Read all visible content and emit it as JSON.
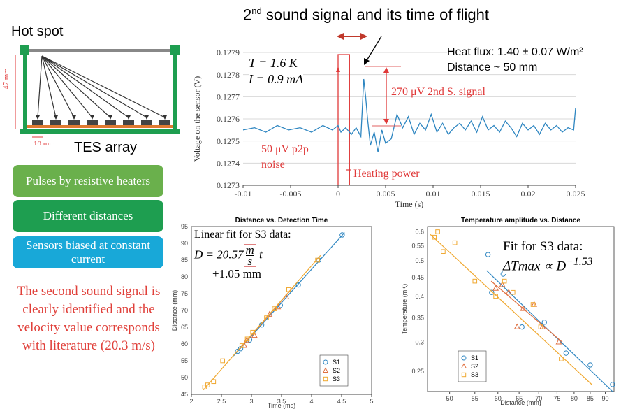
{
  "slide": {
    "title_prefix": "2",
    "title_sup": "nd",
    "title_suffix": " sound signal and its time of flight",
    "hot_spot_label": "Hot spot",
    "tes_array_label": "TES array",
    "dim_height": "47 mm",
    "dim_width": "10 mm",
    "boxes": [
      {
        "label": "Pulses by resistive heaters",
        "color": "#6ab04c"
      },
      {
        "label": "Different distances",
        "color": "#1e9e50"
      },
      {
        "label": "Sensors biased at constant current",
        "color": "#18a8d8"
      }
    ],
    "conclusion": "The second sound signal is clearly identified and the velocity value corresponds with literature (20.3 m/s)"
  },
  "signal_annotations": {
    "temperature": "T = 1.6 K",
    "current": "I = 0.9 mA",
    "heat_flux": "Heat flux: 1.40 ± 0.07 W/m²",
    "distance": "Distance ~ 50 mm",
    "signal_label": "270 μV 2nd S. signal",
    "noise_label_1": "50 μV p2p",
    "noise_label_2": "noise",
    "heating_label": "Heating power"
  },
  "fit1": {
    "line1": "Linear fit for S3 data:",
    "prefix": "D = 20.57",
    "num": "m",
    "den": "s",
    "var": "t",
    "line3": "+1.05 mm"
  },
  "fit2": {
    "line1": "Fit for S3 data:",
    "eq": "ΔTmax ∝ D",
    "exp": "−1.53"
  },
  "chart_data": [
    {
      "type": "line",
      "title": "",
      "xlabel": "Time (s)",
      "ylabel": "Voltage on the sensor (V)",
      "xlim": [
        -0.01,
        0.025
      ],
      "ylim": [
        0.1273,
        0.1279
      ],
      "xticks": [
        -0.01,
        -0.005,
        0,
        0.005,
        0.01,
        0.015,
        0.02,
        0.025
      ],
      "xtick_labels": [
        "-0.01",
        "-0.005",
        "0",
        "0.005",
        "0.01",
        "0.015",
        "0.02",
        "0.025"
      ],
      "yticks": [
        0.1273,
        0.1274,
        0.1275,
        0.1276,
        0.1277,
        0.1278,
        0.1279
      ],
      "ytick_labels": [
        "0.1273",
        "0.1274",
        "0.1275",
        "0.1276",
        "0.1277",
        "0.1278",
        "0.1279"
      ],
      "grid": true,
      "series": [
        {
          "color": "#2e86c1",
          "x": [
            -0.01,
            -0.0088,
            -0.0076,
            -0.0064,
            -0.0052,
            -0.004,
            -0.0028,
            -0.0016,
            -0.0006,
            0,
            0.0003,
            0.0008,
            0.0014,
            0.0019,
            0.0024,
            0.0027,
            0.0029,
            0.0031,
            0.0034,
            0.0038,
            0.0042,
            0.0046,
            0.005,
            0.0056,
            0.0062,
            0.0068,
            0.0074,
            0.008,
            0.0086,
            0.0092,
            0.0098,
            0.0104,
            0.011,
            0.0116,
            0.0122,
            0.0128,
            0.0134,
            0.014,
            0.0146,
            0.0152,
            0.0158,
            0.0164,
            0.017,
            0.0176,
            0.0182,
            0.0188,
            0.0194,
            0.02,
            0.0206,
            0.0212,
            0.0218,
            0.0224,
            0.023,
            0.0236,
            0.0242,
            0.0248,
            0.025
          ],
          "y": [
            0.12755,
            0.12756,
            0.12754,
            0.12757,
            0.12755,
            0.12756,
            0.12754,
            0.12757,
            0.12755,
            0.12757,
            0.12754,
            0.12756,
            0.12753,
            0.12756,
            0.12752,
            0.12778,
            0.1277,
            0.1276,
            0.12748,
            0.12754,
            0.12745,
            0.12755,
            0.12749,
            0.12751,
            0.12762,
            0.12756,
            0.12761,
            0.12753,
            0.12758,
            0.12755,
            0.12762,
            0.12754,
            0.12758,
            0.12753,
            0.12756,
            0.12758,
            0.12755,
            0.12759,
            0.12754,
            0.12761,
            0.12755,
            0.12757,
            0.12754,
            0.12759,
            0.12756,
            0.12752,
            0.12758,
            0.12755,
            0.12757,
            0.12753,
            0.12758,
            0.12755,
            0.12757,
            0.12754,
            0.12756,
            0.12755,
            0.12765
          ]
        }
      ],
      "heating_pulse": {
        "x_start": 0,
        "x_end": 0.0012,
        "color": "#e03a3a"
      }
    },
    {
      "type": "scatter",
      "title": "Distance vs. Detection Time",
      "xlabel": "Time (ms)",
      "ylabel": "Distance (mm)",
      "xlim": [
        2,
        5
      ],
      "ylim": [
        45,
        95
      ],
      "xticks": [
        2,
        2.5,
        3,
        3.5,
        4,
        4.5,
        5
      ],
      "xtick_labels": [
        "2",
        "2.5",
        "3",
        "3.5",
        "4",
        "4.5",
        "5"
      ],
      "yticks": [
        45,
        50,
        55,
        60,
        65,
        70,
        75,
        80,
        85,
        90,
        95
      ],
      "ytick_labels": [
        "45",
        "50",
        "55",
        "60",
        "65",
        "70",
        "75",
        "80",
        "85",
        "90",
        "95"
      ],
      "legend_position": "bottom-right",
      "series": [
        {
          "name": "S1",
          "marker": "circle",
          "color": "#2e86c1",
          "x": [
            2.77,
            2.82,
            2.97,
            3.17,
            3.48,
            3.78,
            4.12,
            4.51
          ],
          "y": [
            57.8,
            58.6,
            61.2,
            65.7,
            71.5,
            77.6,
            85.0,
            92.5
          ],
          "fit": [
            [
              2.7,
              56.4
            ],
            [
              4.55,
              93.2
            ]
          ]
        },
        {
          "name": "S2",
          "marker": "triangle",
          "color": "#e07040",
          "x": [
            2.88,
            2.92,
            3.05,
            3.3,
            3.44,
            3.58
          ],
          "y": [
            59.5,
            61.0,
            62.5,
            68.8,
            71.0,
            74.0
          ],
          "fit": [
            [
              2.8,
              58.5
            ],
            [
              3.7,
              77.0
            ]
          ]
        },
        {
          "name": "S3",
          "marker": "square",
          "color": "#f0a830",
          "x": [
            2.22,
            2.27,
            2.37,
            2.52,
            2.84,
            2.93,
            3.02,
            3.25,
            3.38,
            3.62,
            4.1
          ],
          "y": [
            47.2,
            47.8,
            48.8,
            55.0,
            59.5,
            61.5,
            63.5,
            67.8,
            70.5,
            76.2,
            85.0
          ],
          "fit": [
            [
              2.2,
              46.3
            ],
            [
              4.15,
              86.4
            ]
          ]
        }
      ]
    },
    {
      "type": "scatter",
      "title": "Temperature amplitude vs. Distance",
      "xlabel": "Distance (mm)",
      "ylabel": "Temperature (mK)",
      "log_scale": "both",
      "xlim": [
        46,
        93
      ],
      "ylim": [
        0.22,
        0.62
      ],
      "xticks": [
        50,
        55,
        60,
        65,
        70,
        75,
        80,
        85,
        90
      ],
      "xtick_labels": [
        "50",
        "55",
        "60",
        "65",
        "70",
        "75",
        "80",
        "85",
        "90"
      ],
      "yticks": [
        0.25,
        0.3,
        0.35,
        0.4,
        0.45,
        0.5,
        0.55,
        0.6
      ],
      "ytick_labels": [
        "0.25",
        "0.3",
        "0.35",
        "0.4",
        "0.45",
        "0.5",
        "0.55",
        "0.6"
      ],
      "legend_position": "bottom-left",
      "series": [
        {
          "name": "S1",
          "marker": "circle",
          "color": "#2e86c1",
          "x": [
            57.8,
            58.6,
            61.2,
            65.7,
            71.5,
            77.6,
            85.0,
            92.5
          ],
          "y": [
            0.52,
            0.41,
            0.46,
            0.33,
            0.34,
            0.28,
            0.26,
            0.23
          ],
          "fit": [
            [
              57.5,
              0.47
            ],
            [
              92.5,
              0.22
            ]
          ]
        },
        {
          "name": "S2",
          "marker": "triangle",
          "color": "#e07040",
          "x": [
            59.5,
            61.0,
            62.5,
            64.5,
            66.0,
            68.8,
            71.0,
            75.5
          ],
          "y": [
            0.42,
            0.43,
            0.41,
            0.33,
            0.37,
            0.38,
            0.33,
            0.3
          ],
          "fit": [
            [
              58.5,
              0.44
            ],
            [
              76.5,
              0.3
            ]
          ]
        },
        {
          "name": "S3",
          "marker": "square",
          "color": "#f0a830",
          "x": [
            47.2,
            47.8,
            48.8,
            51.0,
            55.0,
            59.5,
            61.5,
            63.5,
            68.5,
            70.5,
            76.2
          ],
          "y": [
            0.58,
            0.6,
            0.53,
            0.56,
            0.44,
            0.4,
            0.44,
            0.41,
            0.38,
            0.33,
            0.27
          ],
          "fit": [
            [
              46.5,
              0.59
            ],
            [
              85.5,
              0.23
            ]
          ]
        }
      ]
    }
  ]
}
